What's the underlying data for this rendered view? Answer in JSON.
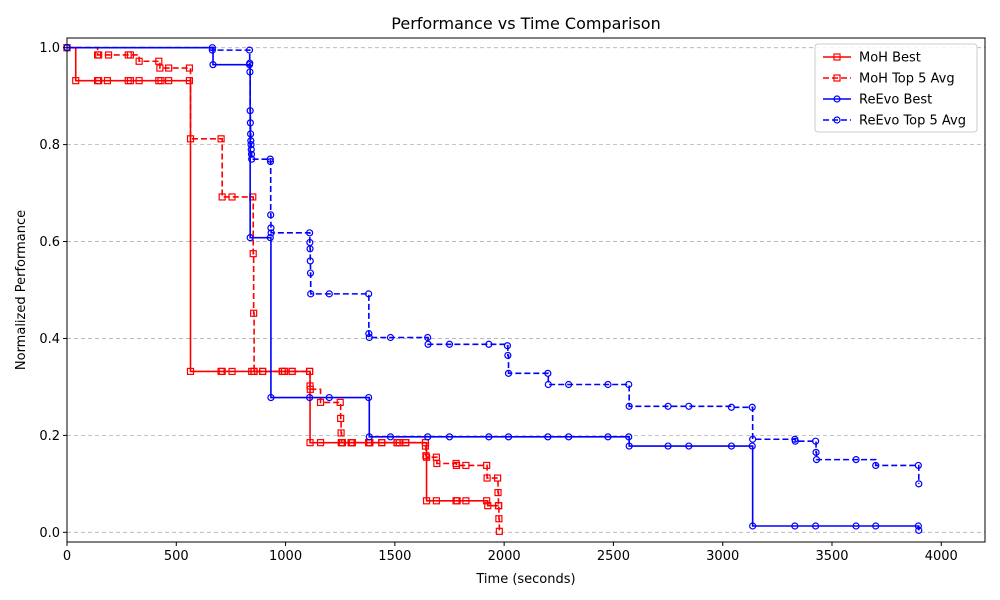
{
  "chart_data": {
    "type": "line",
    "step": "post",
    "title": "Performance vs Time Comparison",
    "xlabel": "Time (seconds)",
    "ylabel": "Normalized Performance",
    "xlim": [
      0,
      4200
    ],
    "ylim": [
      -0.02,
      1.02
    ],
    "xticks": [
      0,
      500,
      1000,
      1500,
      2000,
      2500,
      3000,
      3500,
      4000
    ],
    "yticks": [
      0.0,
      0.2,
      0.4,
      0.6,
      0.8,
      1.0
    ],
    "xtick_labels": [
      "0",
      "500",
      "1000",
      "1500",
      "2000",
      "2500",
      "3000",
      "3500",
      "4000"
    ],
    "ytick_labels": [
      "0.0",
      "0.2",
      "0.4",
      "0.6",
      "0.8",
      "1.0"
    ],
    "grid": "y-dashed",
    "legend_position": "top-right",
    "series": [
      {
        "name": "MoH Best",
        "color": "#ff0000",
        "linestyle": "solid",
        "marker": "square",
        "points": [
          [
            0,
            1.0
          ],
          [
            40,
            0.932
          ],
          [
            140,
            0.932
          ],
          [
            145,
            0.932
          ],
          [
            185,
            0.932
          ],
          [
            280,
            0.932
          ],
          [
            290,
            0.932
          ],
          [
            330,
            0.932
          ],
          [
            420,
            0.932
          ],
          [
            430,
            0.932
          ],
          [
            465,
            0.932
          ],
          [
            560,
            0.932
          ],
          [
            565,
            0.332
          ],
          [
            705,
            0.332
          ],
          [
            710,
            0.332
          ],
          [
            755,
            0.332
          ],
          [
            845,
            0.332
          ],
          [
            855,
            0.332
          ],
          [
            895,
            0.332
          ],
          [
            985,
            0.332
          ],
          [
            995,
            0.332
          ],
          [
            1030,
            0.332
          ],
          [
            1110,
            0.332
          ],
          [
            1112,
            0.185
          ],
          [
            1160,
            0.185
          ],
          [
            1255,
            0.185
          ],
          [
            1260,
            0.185
          ],
          [
            1300,
            0.185
          ],
          [
            1305,
            0.185
          ],
          [
            1380,
            0.185
          ],
          [
            1385,
            0.185
          ],
          [
            1440,
            0.185
          ],
          [
            1510,
            0.185
          ],
          [
            1520,
            0.185
          ],
          [
            1550,
            0.185
          ],
          [
            1640,
            0.185
          ],
          [
            1645,
            0.065
          ],
          [
            1690,
            0.065
          ],
          [
            1780,
            0.065
          ],
          [
            1785,
            0.065
          ],
          [
            1825,
            0.065
          ],
          [
            1920,
            0.065
          ],
          [
            1925,
            0.055
          ],
          [
            1975,
            0.055
          ]
        ]
      },
      {
        "name": "MoH Top 5 Avg",
        "color": "#ff0000",
        "linestyle": "dashed",
        "marker": "square",
        "points": [
          [
            0,
            1.0
          ],
          [
            140,
            0.985
          ],
          [
            145,
            0.985
          ],
          [
            190,
            0.985
          ],
          [
            280,
            0.985
          ],
          [
            290,
            0.985
          ],
          [
            330,
            0.972
          ],
          [
            420,
            0.972
          ],
          [
            425,
            0.958
          ],
          [
            465,
            0.958
          ],
          [
            560,
            0.958
          ],
          [
            565,
            0.812
          ],
          [
            705,
            0.812
          ],
          [
            710,
            0.692
          ],
          [
            755,
            0.692
          ],
          [
            850,
            0.692
          ],
          [
            852,
            0.575
          ],
          [
            854,
            0.452
          ],
          [
            856,
            0.332
          ],
          [
            895,
            0.332
          ],
          [
            985,
            0.332
          ],
          [
            995,
            0.332
          ],
          [
            1030,
            0.332
          ],
          [
            1110,
            0.332
          ],
          [
            1112,
            0.302
          ],
          [
            1113,
            0.295
          ],
          [
            1160,
            0.268
          ],
          [
            1250,
            0.268
          ],
          [
            1252,
            0.235
          ],
          [
            1254,
            0.205
          ],
          [
            1256,
            0.185
          ],
          [
            1300,
            0.185
          ],
          [
            1305,
            0.185
          ],
          [
            1380,
            0.185
          ],
          [
            1385,
            0.185
          ],
          [
            1440,
            0.185
          ],
          [
            1510,
            0.185
          ],
          [
            1520,
            0.185
          ],
          [
            1550,
            0.185
          ],
          [
            1640,
            0.178
          ],
          [
            1642,
            0.158
          ],
          [
            1645,
            0.155
          ],
          [
            1690,
            0.155
          ],
          [
            1692,
            0.142
          ],
          [
            1780,
            0.142
          ],
          [
            1782,
            0.138
          ],
          [
            1825,
            0.138
          ],
          [
            1920,
            0.138
          ],
          [
            1922,
            0.112
          ],
          [
            1970,
            0.112
          ],
          [
            1972,
            0.082
          ],
          [
            1974,
            0.055
          ],
          [
            1976,
            0.028
          ],
          [
            1978,
            0.002
          ]
        ]
      },
      {
        "name": "ReEvo Best",
        "color": "#0000ff",
        "linestyle": "solid",
        "marker": "circle",
        "points": [
          [
            0,
            1.0
          ],
          [
            665,
            1.0
          ],
          [
            668,
            0.965
          ],
          [
            835,
            0.965
          ],
          [
            838,
            0.608
          ],
          [
            930,
            0.608
          ],
          [
            933,
            0.278
          ],
          [
            1110,
            0.278
          ],
          [
            1200,
            0.278
          ],
          [
            1380,
            0.278
          ],
          [
            1383,
            0.197
          ],
          [
            1480,
            0.197
          ],
          [
            1650,
            0.197
          ],
          [
            1750,
            0.197
          ],
          [
            1930,
            0.197
          ],
          [
            2020,
            0.197
          ],
          [
            2200,
            0.197
          ],
          [
            2295,
            0.197
          ],
          [
            2475,
            0.197
          ],
          [
            2570,
            0.197
          ],
          [
            2572,
            0.178
          ],
          [
            2750,
            0.178
          ],
          [
            2845,
            0.178
          ],
          [
            3040,
            0.178
          ],
          [
            3135,
            0.178
          ],
          [
            3137,
            0.013
          ],
          [
            3330,
            0.013
          ],
          [
            3425,
            0.013
          ],
          [
            3610,
            0.013
          ],
          [
            3700,
            0.013
          ],
          [
            3895,
            0.013
          ],
          [
            3897,
            0.004
          ]
        ]
      },
      {
        "name": "ReEvo Top 5 Avg",
        "color": "#0000ff",
        "linestyle": "dashed",
        "marker": "circle",
        "points": [
          [
            0,
            1.0
          ],
          [
            665,
            0.995
          ],
          [
            835,
            0.995
          ],
          [
            836,
            0.968
          ],
          [
            837,
            0.95
          ],
          [
            838,
            0.87
          ],
          [
            839,
            0.845
          ],
          [
            840,
            0.822
          ],
          [
            841,
            0.808
          ],
          [
            842,
            0.8
          ],
          [
            843,
            0.79
          ],
          [
            844,
            0.78
          ],
          [
            845,
            0.77
          ],
          [
            930,
            0.77
          ],
          [
            931,
            0.765
          ],
          [
            932,
            0.655
          ],
          [
            933,
            0.628
          ],
          [
            934,
            0.618
          ],
          [
            1110,
            0.618
          ],
          [
            1111,
            0.598
          ],
          [
            1112,
            0.585
          ],
          [
            1113,
            0.56
          ],
          [
            1114,
            0.535
          ],
          [
            1115,
            0.492
          ],
          [
            1200,
            0.492
          ],
          [
            1380,
            0.492
          ],
          [
            1381,
            0.41
          ],
          [
            1383,
            0.402
          ],
          [
            1480,
            0.402
          ],
          [
            1650,
            0.402
          ],
          [
            1652,
            0.388
          ],
          [
            1750,
            0.388
          ],
          [
            1930,
            0.388
          ],
          [
            2015,
            0.385
          ],
          [
            2017,
            0.365
          ],
          [
            2020,
            0.328
          ],
          [
            2200,
            0.328
          ],
          [
            2202,
            0.305
          ],
          [
            2295,
            0.305
          ],
          [
            2475,
            0.305
          ],
          [
            2570,
            0.305
          ],
          [
            2572,
            0.26
          ],
          [
            2750,
            0.26
          ],
          [
            2845,
            0.26
          ],
          [
            3040,
            0.258
          ],
          [
            3135,
            0.258
          ],
          [
            3137,
            0.192
          ],
          [
            3330,
            0.192
          ],
          [
            3332,
            0.188
          ],
          [
            3425,
            0.188
          ],
          [
            3427,
            0.165
          ],
          [
            3429,
            0.15
          ],
          [
            3610,
            0.15
          ],
          [
            3700,
            0.138
          ],
          [
            3895,
            0.138
          ],
          [
            3897,
            0.1
          ]
        ]
      }
    ]
  }
}
